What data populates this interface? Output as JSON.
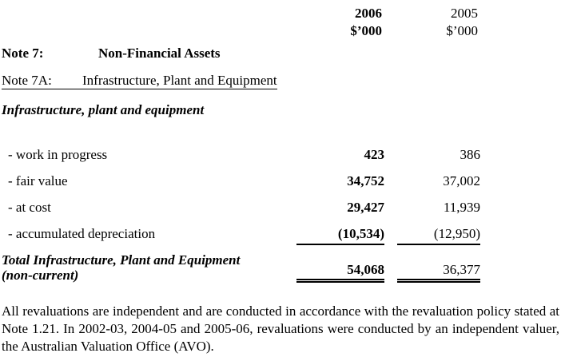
{
  "columns": {
    "year1": "2006",
    "year2": "2005",
    "unit1": "$’000",
    "unit2": "$’000"
  },
  "note7": {
    "label": "Note 7:",
    "title": "Non-Financial Assets"
  },
  "note7a": {
    "label": "Note 7A:",
    "title": "Infrastructure, Plant and Equipment"
  },
  "section_heading": "Infrastructure, plant and equipment",
  "rows": [
    {
      "label": "- work in progress",
      "v2006": "423",
      "v2005": "386"
    },
    {
      "label": "- fair value",
      "v2006": "34,752",
      "v2005": "37,002"
    },
    {
      "label": "- at cost",
      "v2006": "29,427",
      "v2005": "11,939"
    },
    {
      "label": "- accumulated depreciation",
      "v2006": "(10,534)",
      "v2005": "(12,950)"
    }
  ],
  "total": {
    "label_line1": "Total Infrastructure, Plant and Equipment",
    "label_line2": "(non-current)",
    "v2006": "54,068",
    "v2005": "36,377"
  },
  "footnote": "All revaluations are independent and are conducted in accordance with the revaluation policy stated at Note 1.21.  In 2002-03, 2004-05 and 2005-06, revaluations were conducted by an independent valuer, the Australian Valuation Office (AVO).",
  "colors": {
    "text": "#000000",
    "background": "#ffffff"
  }
}
